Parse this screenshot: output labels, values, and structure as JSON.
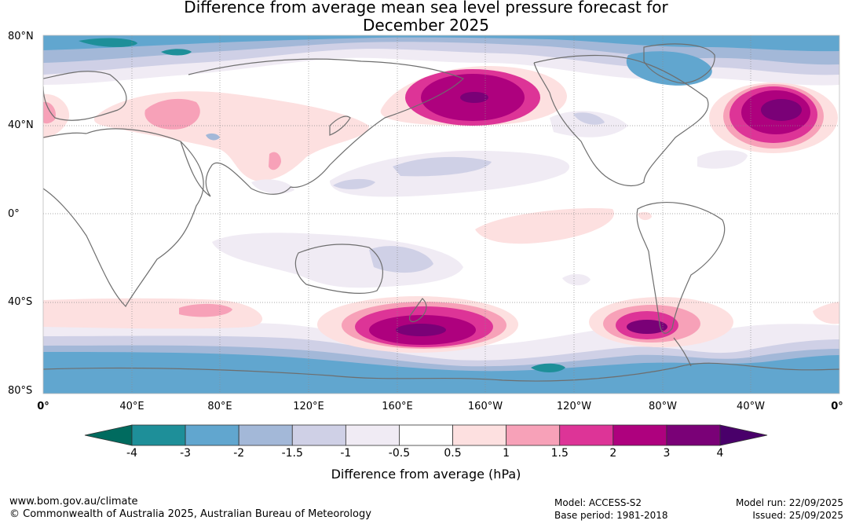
{
  "title_line1": "Difference from average mean sea level pressure forecast for",
  "title_line2": "December 2025",
  "lat_labels": [
    "80°N",
    "40°N",
    "0°",
    "40°S",
    "80°S"
  ],
  "lon_labels": [
    "0°",
    "40°E",
    "80°E",
    "120°E",
    "160°E",
    "160°W",
    "120°W",
    "80°W",
    "40°W",
    "0°"
  ],
  "colorbar": {
    "ticks": [
      "-4",
      "-3",
      "-2",
      "-1.5",
      "-1",
      "-0.5",
      "0.5",
      "1",
      "1.5",
      "2",
      "3",
      "4"
    ],
    "colors": [
      "#006b5f",
      "#1e8f99",
      "#61a6cf",
      "#a3b8d8",
      "#cfd0e6",
      "#f0ebf4",
      "#ffffff",
      "#fde0e0",
      "#f7a1b8",
      "#dd3497",
      "#ae017e",
      "#7a0177",
      "#49006a"
    ],
    "title": "Difference from average (hPa)"
  },
  "footer": {
    "url": "www.bom.gov.au/climate",
    "copyright": "© Commonwealth of Australia 2025, Australian Bureau of Meteorology",
    "model": "Model: ACCESS-S2",
    "base_period": "Base period: 1981-2018",
    "model_run": "Model run: 22/09/2025",
    "issued": "Issued: 25/09/2025"
  }
}
